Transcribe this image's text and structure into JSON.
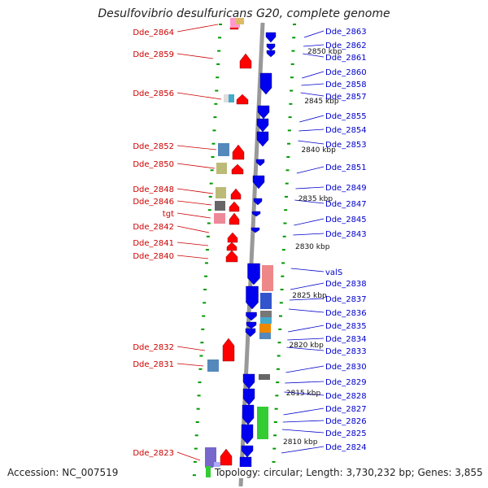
{
  "title": "Desulfovibrio desulfuricans G20, complete genome",
  "footer": {
    "accession": "Accession: NC_007519",
    "topology": "Topology: circular; Length: 3,730,232 bp; Genes: 3,855"
  },
  "colors": {
    "backbone": "#999999",
    "forward_arrow": "#ff0000",
    "reverse_arrow": "#0000ee",
    "label_left": "#cc0000",
    "label_right": "#0000cc",
    "tick": "#009900",
    "rna": "#33cc33"
  },
  "scale_labels": [
    "2850 kbp",
    "2845 kbp",
    "2840 kbp",
    "2835 kbp",
    "2830 kbp",
    "2825 kbp",
    "2820 kbp",
    "2815 kbp",
    "2810 kbp"
  ],
  "left_labels": [
    "Dde_2864",
    "Dde_2859",
    "Dde_2856",
    "Dde_2852",
    "Dde_2850",
    "Dde_2848",
    "Dde_2846",
    "tgt",
    "Dde_2842",
    "Dde_2841",
    "Dde_2840",
    "Dde_2832",
    "Dde_2831",
    "Dde_2823"
  ],
  "right_labels": [
    "Dde_2863",
    "Dde_2862",
    "Dde_2861",
    "Dde_2860",
    "Dde_2858",
    "Dde_2857",
    "Dde_2855",
    "Dde_2854",
    "Dde_2853",
    "Dde_2851",
    "Dde_2849",
    "Dde_2847",
    "Dde_2845",
    "Dde_2843",
    "valS",
    "Dde_2838",
    "Dde_2837",
    "Dde_2836",
    "Dde_2835",
    "Dde_2834",
    "Dde_2833",
    "Dde_2830",
    "Dde_2829",
    "Dde_2828",
    "Dde_2827",
    "Dde_2826",
    "Dde_2825",
    "Dde_2824"
  ]
}
